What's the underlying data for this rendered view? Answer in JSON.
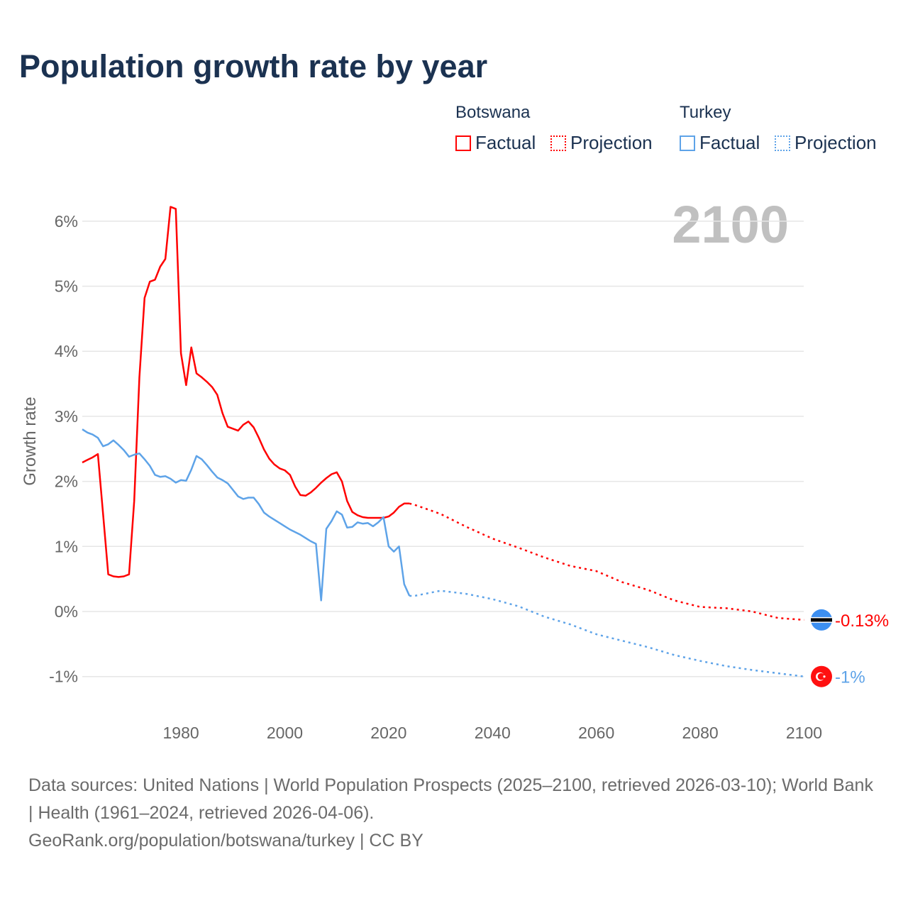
{
  "title": "Population growth rate by year",
  "legend": {
    "groups": [
      {
        "country": "Botswana",
        "factual": "Factual",
        "projection": "Projection",
        "color": "#ff0000"
      },
      {
        "country": "Turkey",
        "factual": "Factual",
        "projection": "Projection",
        "color": "#5ea3e8"
      }
    ]
  },
  "year_display": "2100",
  "footer": {
    "sources": "Data sources: United Nations | World Population Prospects (2025–2100, retrieved 2026-03-10); World Bank | Health (1961–2024, retrieved 2026-04-06).",
    "link": "GeoRank.org/population/botswana/turkey | CC BY"
  },
  "chart_data": {
    "type": "line",
    "title": "Population growth rate by year",
    "xlabel": "",
    "ylabel": "Growth rate",
    "xlim": [
      1961,
      2100
    ],
    "ylim": [
      -1.3,
      6.6
    ],
    "x_ticks": [
      1980,
      2000,
      2020,
      2040,
      2060,
      2080,
      2100
    ],
    "y_ticks": [
      -1,
      0,
      1,
      2,
      3,
      4,
      5,
      6
    ],
    "y_tick_labels": [
      "-1%",
      "0%",
      "1%",
      "2%",
      "3%",
      "4%",
      "5%",
      "6%"
    ],
    "grid": true,
    "legend_position": "top-right",
    "end_labels": {
      "Botswana": "-0.13%",
      "Turkey": "-1%"
    },
    "series": [
      {
        "name": "Botswana",
        "kind": "Factual",
        "color": "#ff0000",
        "start_year": 1961,
        "values": [
          2.29,
          2.33,
          2.37,
          2.42,
          1.5,
          0.57,
          0.54,
          0.53,
          0.54,
          0.57,
          1.7,
          3.6,
          4.82,
          5.07,
          5.1,
          5.3,
          5.42,
          6.22,
          6.19,
          3.97,
          3.48,
          4.06,
          3.66,
          3.6,
          3.53,
          3.45,
          3.33,
          3.05,
          2.84,
          2.81,
          2.78,
          2.87,
          2.92,
          2.83,
          2.67,
          2.49,
          2.35,
          2.26,
          2.2,
          2.17,
          2.1,
          1.92,
          1.79,
          1.78,
          1.83,
          1.9,
          1.98,
          2.05,
          2.11,
          2.14,
          2.0,
          1.7,
          1.53,
          1.48,
          1.45,
          1.44,
          1.44,
          1.44,
          1.44,
          1.46,
          1.52,
          1.61,
          1.66,
          1.66
        ]
      },
      {
        "name": "Botswana",
        "kind": "Projection",
        "color": "#ff0000",
        "years": [
          2024,
          2025,
          2030,
          2035,
          2040,
          2045,
          2050,
          2055,
          2060,
          2065,
          2070,
          2075,
          2080,
          2085,
          2090,
          2095,
          2100
        ],
        "values": [
          1.66,
          1.64,
          1.5,
          1.3,
          1.12,
          0.98,
          0.83,
          0.7,
          0.62,
          0.45,
          0.33,
          0.17,
          0.07,
          0.05,
          0.0,
          -0.1,
          -0.13
        ]
      },
      {
        "name": "Turkey",
        "kind": "Factual",
        "color": "#5ea3e8",
        "start_year": 1961,
        "values": [
          2.8,
          2.75,
          2.72,
          2.67,
          2.54,
          2.57,
          2.63,
          2.56,
          2.48,
          2.38,
          2.41,
          2.43,
          2.34,
          2.24,
          2.1,
          2.07,
          2.08,
          2.04,
          1.98,
          2.02,
          2.01,
          2.18,
          2.39,
          2.34,
          2.25,
          2.15,
          2.06,
          2.02,
          1.97,
          1.87,
          1.77,
          1.73,
          1.75,
          1.75,
          1.65,
          1.52,
          1.46,
          1.41,
          1.36,
          1.31,
          1.26,
          1.22,
          1.18,
          1.13,
          1.08,
          1.04,
          0.17,
          1.27,
          1.39,
          1.54,
          1.49,
          1.29,
          1.3,
          1.37,
          1.35,
          1.36,
          1.31,
          1.37,
          1.45,
          1.0,
          0.92,
          1.0,
          0.42,
          0.24
        ]
      },
      {
        "name": "Turkey",
        "kind": "Projection",
        "color": "#5ea3e8",
        "years": [
          2024,
          2025,
          2030,
          2035,
          2040,
          2045,
          2050,
          2055,
          2060,
          2065,
          2070,
          2075,
          2080,
          2085,
          2090,
          2095,
          2100
        ],
        "values": [
          0.24,
          0.24,
          0.32,
          0.27,
          0.19,
          0.08,
          -0.08,
          -0.2,
          -0.35,
          -0.45,
          -0.55,
          -0.67,
          -0.76,
          -0.84,
          -0.9,
          -0.95,
          -1.0
        ]
      }
    ]
  }
}
